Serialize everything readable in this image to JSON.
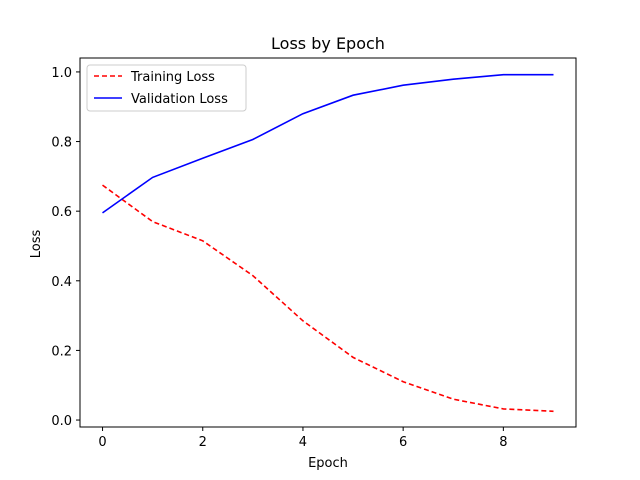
{
  "chart_data": {
    "type": "line",
    "title": "Loss by Epoch",
    "xlabel": "Epoch",
    "ylabel": "Loss",
    "xlim": [
      -0.45,
      9.45
    ],
    "ylim": [
      -0.02,
      1.04
    ],
    "x_ticks": [
      0,
      2,
      4,
      6,
      8
    ],
    "y_ticks": [
      0.0,
      0.2,
      0.4,
      0.6,
      0.8,
      1.0
    ],
    "grid": false,
    "legend_position": "upper-left",
    "x": [
      0,
      1,
      2,
      3,
      4,
      5,
      6,
      7,
      8,
      9
    ],
    "series": [
      {
        "name": "Training Loss",
        "color": "#ff0000",
        "style": "dashed",
        "values": [
          0.675,
          0.57,
          0.515,
          0.415,
          0.285,
          0.18,
          0.11,
          0.06,
          0.032,
          0.025
        ]
      },
      {
        "name": "Validation Loss",
        "color": "#0000ff",
        "style": "solid",
        "values": [
          0.595,
          0.697,
          0.752,
          0.806,
          0.88,
          0.933,
          0.962,
          0.979,
          0.992,
          0.992
        ]
      }
    ]
  }
}
